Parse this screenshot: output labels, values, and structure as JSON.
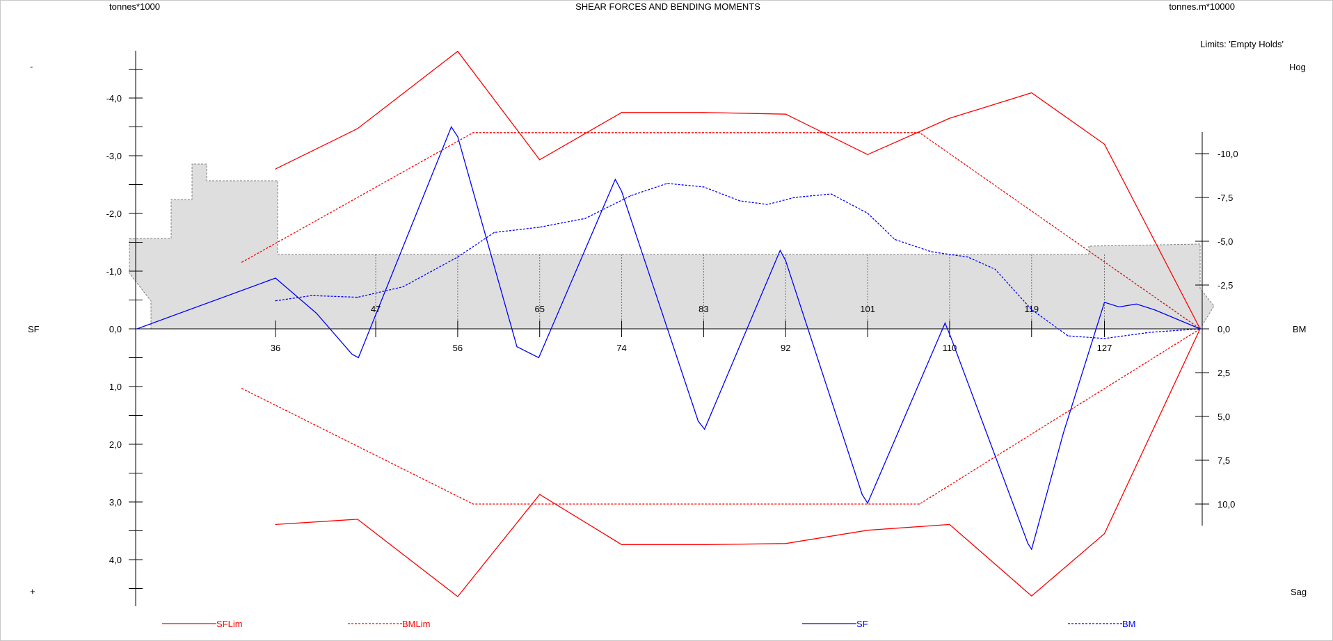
{
  "header": {
    "left_unit": "tonnes*1000",
    "title": "SHEAR FORCES AND BENDING MOMENTS",
    "right_unit": "tonnes.m*10000",
    "limits_label": "Limits: 'Empty Holds'"
  },
  "side_labels": {
    "minus": "-",
    "plus": "+",
    "hog": "Hog",
    "sag": "Sag",
    "sf": "SF",
    "bm": "BM"
  },
  "colors": {
    "limit": "#ff0000",
    "value": "#0000ff",
    "ship_fill": "#dedede",
    "ship_outline": "#808080"
  },
  "chart_data": {
    "type": "line",
    "title": "SHEAR FORCES AND BENDING MOMENTS",
    "x_ticks": [
      "36",
      "47",
      "56",
      "65",
      "74",
      "83",
      "92",
      "101",
      "110",
      "119",
      "127"
    ],
    "x_tick_values": [
      36,
      47,
      56,
      65,
      74,
      83,
      92,
      101,
      110,
      119,
      127
    ],
    "xlim": [
      20.8,
      137.5
    ],
    "left_axis": {
      "label": "SF",
      "unit": "tonnes*1000",
      "ylim": [
        -4.0,
        4.0
      ],
      "tick_values": [
        -4,
        -3,
        -2,
        -1,
        0,
        1,
        2,
        3,
        4
      ],
      "tick_labels": [
        "-4,0",
        "-3,0",
        "-2,0",
        "-1,0",
        "0,0",
        "1,0",
        "2,0",
        "3,0",
        "4,0"
      ],
      "top_label": "-",
      "bottom_label": "+"
    },
    "right_axis": {
      "label": "BM",
      "unit": "tonnes.m*10000",
      "tick_values": [
        -10,
        -7.5,
        -5,
        -2.5,
        0,
        2.5,
        5,
        7.5,
        10
      ],
      "tick_labels": [
        "-10,0",
        "-7,5",
        "-5,0",
        "-2,5",
        "0,0",
        "2,5",
        "5,0",
        "7,5",
        "10,0"
      ],
      "top_label": "Hog",
      "bottom_label": "Sag"
    },
    "legend_position": "bottom",
    "series": [
      {
        "name": "SFLim",
        "axis": "left",
        "style": "solid",
        "color": "#ff0000",
        "segments": [
          {
            "x": [
              36,
              45,
              56,
              65,
              74,
              83,
              92,
              101,
              110,
              119,
              127,
              137.5
            ],
            "y": [
              -2.77,
              -3.47,
              -4.81,
              -2.93,
              -3.75,
              -3.75,
              -3.72,
              -3.02,
              -3.65,
              -4.09,
              -3.2,
              0
            ]
          },
          {
            "x": [
              36,
              45,
              56,
              65,
              74,
              83,
              92,
              101,
              110,
              119,
              127,
              137.5
            ],
            "y": [
              3.39,
              3.3,
              4.64,
              2.87,
              3.74,
              3.74,
              3.72,
              3.49,
              3.39,
              4.63,
              3.55,
              0
            ]
          }
        ]
      },
      {
        "name": "BMLim",
        "axis": "right",
        "style": "dashed",
        "color": "#ff0000",
        "segments": [
          {
            "x": [
              32.3,
              57.7,
              106.7,
              137.5
            ],
            "y": [
              -3.8,
              -11.2,
              -11.2,
              0
            ]
          },
          {
            "x": [
              32.3,
              57.7,
              106.7,
              137.5
            ],
            "y": [
              3.4,
              10.0,
              10.0,
              0
            ]
          }
        ]
      },
      {
        "name": "SF",
        "axis": "left",
        "style": "solid",
        "color": "#0000ff",
        "segments": [
          {
            "x": [
              20.8,
              36,
              40.5,
              44.4,
              45.1,
              55.3,
              56,
              62.5,
              64.9,
              73.3,
              74,
              82.4,
              83.1,
              91.4,
              92,
              100.4,
              101,
              109.5,
              110.1,
              118.6,
              119,
              122.5,
              127,
              128.6,
              130.5,
              132.5,
              137.5
            ],
            "y": [
              0,
              -0.88,
              -0.27,
              0.44,
              0.5,
              -3.5,
              -3.33,
              0.31,
              0.5,
              -2.59,
              -2.38,
              1.6,
              1.74,
              -1.36,
              -1.18,
              2.87,
              3.02,
              -0.1,
              0.13,
              3.72,
              3.82,
              1.8,
              -0.46,
              -0.38,
              -0.43,
              -0.33,
              0
            ]
          }
        ]
      },
      {
        "name": "BM",
        "axis": "right",
        "style": "dashed",
        "color": "#0000ff",
        "segments": [
          {
            "x": [
              36,
              40,
              45,
              50,
              56,
              60,
              65,
              70,
              75,
              79,
              83,
              87,
              90,
              93,
              97,
              101,
              104,
              108,
              112,
              115,
              119,
              123,
              127,
              132,
              137.5
            ],
            "y": [
              -1.6,
              -1.9,
              -1.8,
              -2.4,
              -4.1,
              -5.5,
              -5.8,
              -6.3,
              -7.6,
              -8.3,
              -8.1,
              -7.3,
              -7.1,
              -7.5,
              -7.7,
              -6.6,
              -5.1,
              -4.4,
              -4.1,
              -3.4,
              -1.1,
              0.4,
              0.55,
              0.2,
              0
            ]
          }
        ]
      }
    ]
  }
}
